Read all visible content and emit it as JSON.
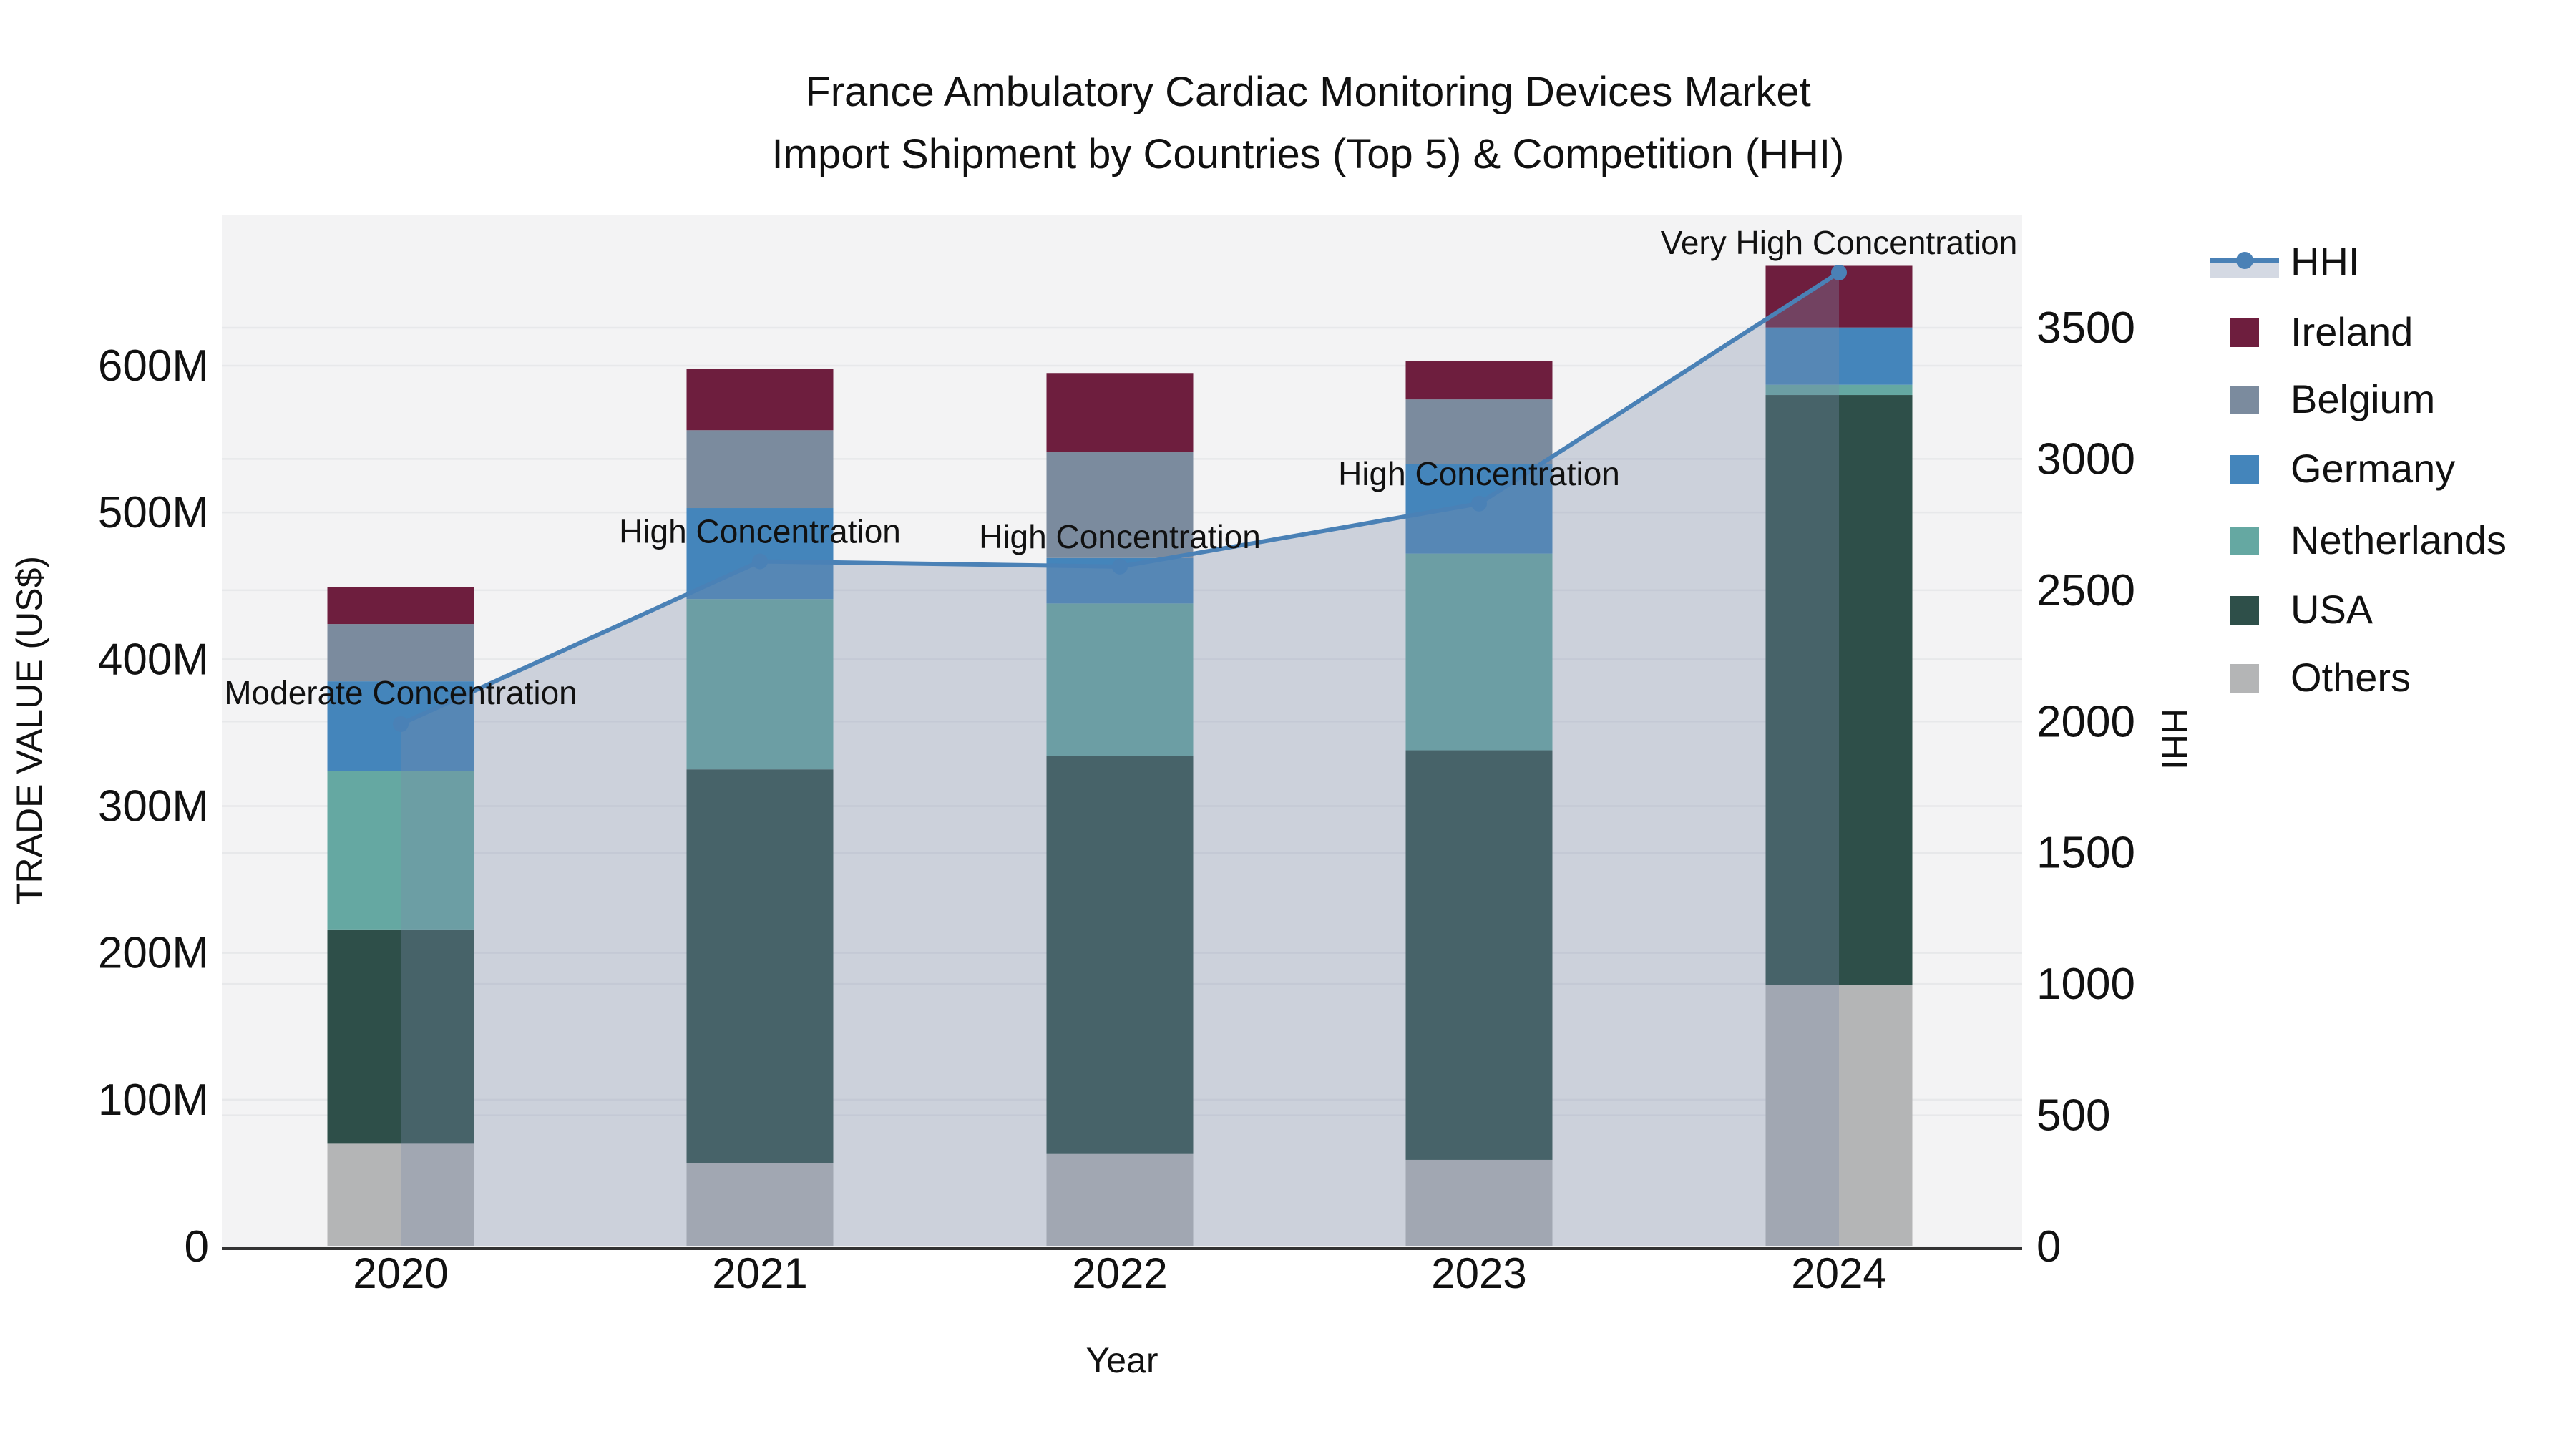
{
  "title": {
    "line1": "France Ambulatory Cardiac Monitoring Devices Market",
    "line2": "Import Shipment by Countries (Top 5) & Competition (HHI)"
  },
  "chart_data": {
    "type": "bar+line",
    "title": "France Ambulatory Cardiac Monitoring Devices Market Import Shipment by Countries (Top 5) & Competition (HHI)",
    "xlabel": "Year",
    "ylabel_left": "TRADE VALUE (US$)",
    "ylabel_right": "HHI",
    "categories": [
      "2020",
      "2021",
      "2022",
      "2023",
      "2024"
    ],
    "value_unit": "M US$",
    "stack_order_bottom_to_top": [
      "Others",
      "USA",
      "Netherlands",
      "Germany",
      "Belgium",
      "Ireland"
    ],
    "series": [
      {
        "name": "Ireland",
        "color": "#6e1e3e",
        "values": [
          25,
          42,
          54,
          26,
          42
        ]
      },
      {
        "name": "Belgium",
        "color": "#7b8b9e",
        "values": [
          39,
          53,
          72,
          44,
          0
        ]
      },
      {
        "name": "Germany",
        "color": "#4485bb",
        "values": [
          61,
          62,
          31,
          61,
          39
        ]
      },
      {
        "name": "Netherlands",
        "color": "#65a8a2",
        "values": [
          108,
          116,
          104,
          134,
          7
        ]
      },
      {
        "name": "USA",
        "color": "#2e4f49",
        "values": [
          146,
          268,
          271,
          279,
          402
        ]
      },
      {
        "name": "Others",
        "color": "#b4b5b6",
        "values": [
          70,
          57,
          63,
          59,
          178
        ]
      }
    ],
    "bar_totals": [
      449,
      598,
      595,
      603,
      668
    ],
    "line_series": {
      "name": "HHI",
      "color": "#4a81b6",
      "fill_color": "rgba(125,140,170,0.33)",
      "values": [
        1990,
        2610,
        2590,
        2830,
        3710
      ]
    },
    "annotations": [
      {
        "text": "Moderate Concentration",
        "x_index": 0,
        "hhi": 1990,
        "yshift": -44
      },
      {
        "text": "High Concentration",
        "x_index": 1,
        "hhi": 2610,
        "yshift": -42
      },
      {
        "text": "High Concentration",
        "x_index": 2,
        "hhi": 2590,
        "yshift": -42
      },
      {
        "text": "High Concentration",
        "x_index": 3,
        "hhi": 2830,
        "yshift": -42
      },
      {
        "text": "Very High Concentration",
        "x_index": 4,
        "hhi": 3710,
        "yshift": -42
      }
    ],
    "yaxis_left": {
      "ticks": [
        {
          "v": 0,
          "label": "0"
        },
        {
          "v": 100,
          "label": "100M"
        },
        {
          "v": 200,
          "label": "200M"
        },
        {
          "v": 300,
          "label": "300M"
        },
        {
          "v": 400,
          "label": "400M"
        },
        {
          "v": 500,
          "label": "500M"
        },
        {
          "v": 600,
          "label": "600M"
        }
      ],
      "max": 703,
      "grid": true
    },
    "yaxis_right": {
      "ticks": [
        {
          "v": 0,
          "label": "0"
        },
        {
          "v": 500,
          "label": "500"
        },
        {
          "v": 1000,
          "label": "1000"
        },
        {
          "v": 1500,
          "label": "1500"
        },
        {
          "v": 2000,
          "label": "2000"
        },
        {
          "v": 2500,
          "label": "2500"
        },
        {
          "v": 3000,
          "label": "3000"
        },
        {
          "v": 3500,
          "label": "3500"
        }
      ],
      "max": 3934,
      "grid": true
    },
    "legend": {
      "position": "top-right",
      "entries": [
        {
          "label": "HHI",
          "type": "line"
        },
        {
          "label": "Ireland",
          "type": "swatch"
        },
        {
          "label": "Belgium",
          "type": "swatch"
        },
        {
          "label": "Germany",
          "type": "swatch"
        },
        {
          "label": "Netherlands",
          "type": "swatch"
        },
        {
          "label": "USA",
          "type": "swatch"
        },
        {
          "label": "Others",
          "type": "swatch"
        }
      ]
    },
    "colors": {
      "plot_bg": "#f3f3f4",
      "grid": "#e7e8ea",
      "axis_line": "#333333",
      "text": "#111111"
    }
  }
}
